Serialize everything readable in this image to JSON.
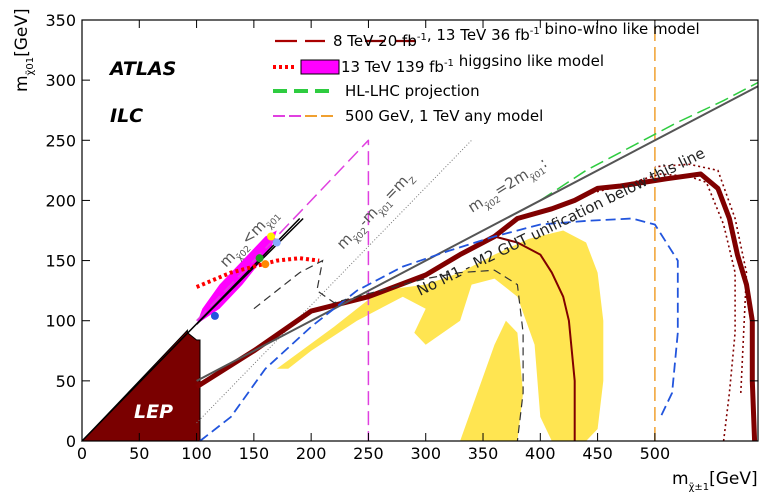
{
  "chart_data": {
    "type": "line",
    "xlabel": "m",
    "xlabel_sub": "χ̃±1",
    "xlabel_unit": "[GeV]",
    "ylabel": "m",
    "ylabel_sub": "χ̃01",
    "ylabel_unit": "[GeV]",
    "xlim": [
      0,
      590
    ],
    "ylim": [
      0,
      350
    ],
    "xticks": [
      0,
      50,
      100,
      150,
      200,
      250,
      300,
      350,
      400,
      450,
      500
    ],
    "yticks": [
      0,
      50,
      100,
      150,
      200,
      250,
      300,
      350
    ],
    "labels": {
      "atlas": "ATLAS",
      "ilc": "ILC",
      "lep": "LEP"
    },
    "legend": [
      {
        "text_a": "8 TeV  20 fb",
        "sup_a": "-1",
        "text_b": ", 13 TeV 36 fb",
        "sup_b": "-1",
        "text_c": " bino-wino like model",
        "style": "darkred-dash"
      },
      {
        "text_a": "13 TeV 139 fb",
        "sup_a": "-1",
        "text_b": " higgsino like model",
        "style": "red-dots-magenta-box"
      },
      {
        "text_a": "HL-LHC projection",
        "style": "green-dash"
      },
      {
        "text_a": "500 GeV, 1 TeV any model",
        "style": "magenta-orange-dash"
      }
    ],
    "annotations": {
      "diag_lt_1": "m",
      "diag_lt_sub1": "χ̃02",
      "diag_lt_mid": "<m",
      "diag_lt_sub2": "χ̃01",
      "diag_z_1": "m",
      "diag_z_sub1": "χ̃02",
      "diag_z_mid": "-m",
      "diag_z_sub2": "χ̃01",
      "diag_z_end": "=m",
      "diag_z_sub3": "Z",
      "diag_2m_1": "m",
      "diag_2m_sub1": "χ̃02",
      "diag_2m_mid": "=2m",
      "diag_2m_sub2": "χ̃01",
      "diag_2m_end": ":",
      "gut": "No M1 - M2 GUT unification below this line"
    },
    "series": [
      {
        "name": "LEP",
        "type": "filled",
        "color": "#7a0000",
        "x": [
          0,
          92,
          92,
          100,
          103,
          103
        ],
        "y": [
          0,
          92,
          90,
          84,
          84,
          0
        ]
      },
      {
        "name": "ILC 500 GeV",
        "color": "#e040e0",
        "style": "dash",
        "x": [
          100,
          250,
          250
        ],
        "y": [
          100,
          250,
          0
        ]
      },
      {
        "name": "ILC 1 TeV",
        "color": "#f0a030",
        "style": "dash",
        "x": [
          500,
          500
        ],
        "y": [
          0,
          350
        ]
      },
      {
        "name": "HL-LHC projection",
        "color": "#2ecc40",
        "style": "dash",
        "x": [
          400,
          440,
          480,
          520,
          560,
          590
        ],
        "y": [
          200,
          225,
          245,
          265,
          283,
          298
        ]
      },
      {
        "name": "13 TeV 139 fb-1 higgsino",
        "color": "#ff0000",
        "style": "dots",
        "x": [
          100,
          110,
          130,
          150,
          170,
          190,
          207
        ],
        "y": [
          128,
          132,
          140,
          145,
          150,
          152,
          150
        ]
      },
      {
        "name": "13 TeV 36 fb-1 bino-wino expected",
        "color": "#800000",
        "style": "solid-thick",
        "x": [
          100,
          150,
          200,
          250,
          300,
          330,
          360,
          380,
          410,
          430,
          450,
          470,
          490,
          510,
          540,
          555,
          565,
          572,
          580,
          585,
          585,
          587
        ],
        "y": [
          45,
          75,
          108,
          120,
          138,
          155,
          170,
          185,
          193,
          200,
          210,
          212,
          215,
          218,
          222,
          210,
          185,
          155,
          130,
          100,
          50,
          0
        ]
      },
      {
        "name": "8 TeV 20 fb-1 bino-wino",
        "color": "#800000",
        "style": "solid",
        "x": [
          360,
          380,
          400,
          410,
          420,
          425,
          430,
          430
        ],
        "y": [
          170,
          165,
          155,
          140,
          120,
          100,
          50,
          0
        ]
      },
      {
        "name": "Reference 2m",
        "color": "#555555",
        "style": "solid",
        "x": [
          100,
          590
        ],
        "y": [
          50,
          295
        ]
      }
    ]
  }
}
